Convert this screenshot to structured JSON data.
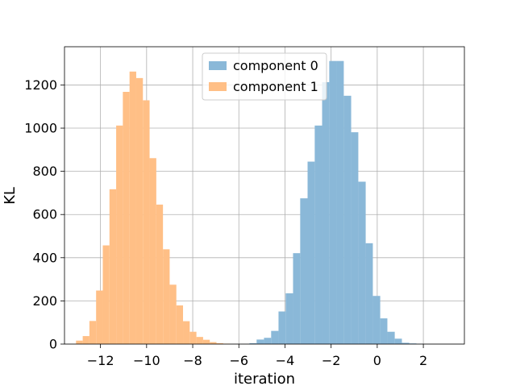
{
  "chart_data": {
    "type": "bar",
    "title": "",
    "xlabel": "iteration",
    "ylabel": "KL",
    "xlim": [
      -13.56,
      3.78
    ],
    "ylim": [
      0,
      1377
    ],
    "xticks": [
      -12,
      -10,
      -8,
      -6,
      -4,
      -2,
      0,
      2
    ],
    "xtick_labels": [
      "−12",
      "−10",
      "−8",
      "−6",
      "−4",
      "−2",
      "0",
      "2"
    ],
    "yticks": [
      0,
      200,
      400,
      600,
      800,
      1000,
      1200
    ],
    "ytick_labels": [
      "0",
      "200",
      "400",
      "600",
      "800",
      "1000",
      "1200"
    ],
    "grid": true,
    "legend_position": "upper center",
    "series": [
      {
        "name": "component 0",
        "color": "#8ab8d8",
        "bins": [
          [
            -5.54,
            4
          ],
          [
            -5.23,
            21
          ],
          [
            -4.91,
            29
          ],
          [
            -4.6,
            61
          ],
          [
            -4.28,
            151
          ],
          [
            -3.97,
            235
          ],
          [
            -3.65,
            421
          ],
          [
            -3.34,
            675
          ],
          [
            -3.02,
            845
          ],
          [
            -2.71,
            1012
          ],
          [
            -2.39,
            1213
          ],
          [
            -2.08,
            1311
          ],
          [
            -1.76,
            1311
          ],
          [
            -1.45,
            1150
          ],
          [
            -1.13,
            981
          ],
          [
            -0.82,
            752
          ],
          [
            -0.5,
            467
          ],
          [
            -0.19,
            223
          ],
          [
            0.13,
            119
          ],
          [
            0.44,
            57
          ],
          [
            0.76,
            25
          ],
          [
            1.07,
            6
          ],
          [
            1.39,
            3
          ],
          [
            1.7,
            1
          ]
        ]
      },
      {
        "name": "component 1",
        "color": "#ffbf86",
        "bins": [
          [
            -13.06,
            16
          ],
          [
            -12.77,
            37
          ],
          [
            -12.48,
            107
          ],
          [
            -12.19,
            248
          ],
          [
            -11.9,
            457
          ],
          [
            -11.61,
            717
          ],
          [
            -11.32,
            1012
          ],
          [
            -11.03,
            1168
          ],
          [
            -10.74,
            1262
          ],
          [
            -10.45,
            1232
          ],
          [
            -10.16,
            1129
          ],
          [
            -9.87,
            861
          ],
          [
            -9.58,
            646
          ],
          [
            -9.29,
            439
          ],
          [
            -9.0,
            275
          ],
          [
            -8.71,
            179
          ],
          [
            -8.42,
            106
          ],
          [
            -8.13,
            57
          ],
          [
            -7.84,
            33
          ],
          [
            -7.55,
            20
          ],
          [
            -7.26,
            9
          ],
          [
            -6.97,
            4
          ],
          [
            -6.68,
            2
          ]
        ]
      }
    ]
  }
}
